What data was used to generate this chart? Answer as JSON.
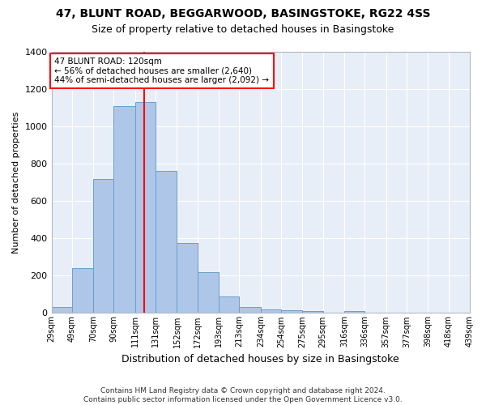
{
  "title1": "47, BLUNT ROAD, BEGGARWOOD, BASINGSTOKE, RG22 4SS",
  "title2": "Size of property relative to detached houses in Basingstoke",
  "xlabel": "Distribution of detached houses by size in Basingstoke",
  "ylabel": "Number of detached properties",
  "footnote": "Contains HM Land Registry data © Crown copyright and database right 2024.\nContains public sector information licensed under the Open Government Licence v3.0.",
  "bin_edges": [
    29,
    49,
    70,
    90,
    111,
    131,
    152,
    172,
    193,
    213,
    234,
    254,
    275,
    295,
    316,
    336,
    357,
    377,
    398,
    418,
    439
  ],
  "bar_heights": [
    30,
    240,
    720,
    1110,
    1130,
    760,
    375,
    220,
    90,
    30,
    20,
    15,
    10,
    0,
    10,
    0,
    0,
    0,
    0,
    0
  ],
  "bar_color": "#aec6e8",
  "bar_edgecolor": "#6aa0cc",
  "bg_color": "#e8eef7",
  "grid_color": "#ffffff",
  "vline_x": 120,
  "vline_color": "red",
  "annotation_text": "47 BLUNT ROAD: 120sqm\n← 56% of detached houses are smaller (2,640)\n44% of semi-detached houses are larger (2,092) →",
  "annotation_box_facecolor": "white",
  "annotation_box_edgecolor": "red",
  "ylim": [
    0,
    1400
  ],
  "yticks": [
    0,
    200,
    400,
    600,
    800,
    1000,
    1200,
    1400
  ],
  "tick_labels": [
    "29sqm",
    "49sqm",
    "70sqm",
    "90sqm",
    "111sqm",
    "131sqm",
    "152sqm",
    "172sqm",
    "193sqm",
    "213sqm",
    "234sqm",
    "254sqm",
    "275sqm",
    "295sqm",
    "316sqm",
    "336sqm",
    "357sqm",
    "377sqm",
    "398sqm",
    "418sqm",
    "439sqm"
  ],
  "title1_fontsize": 10,
  "title2_fontsize": 9,
  "ylabel_fontsize": 8,
  "xlabel_fontsize": 9,
  "footnote_fontsize": 6.5
}
